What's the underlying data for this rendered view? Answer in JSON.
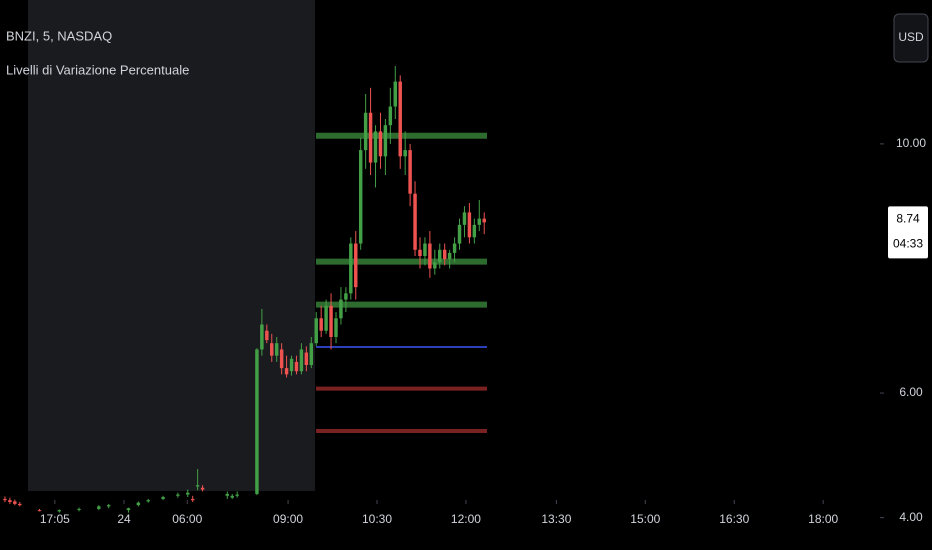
{
  "chart_data": {
    "type": "candlestick",
    "title": "BNZI, 5, NASDAQ",
    "subtitle": "Livelli di Variazione Percentuale",
    "currency": "USD",
    "last_price": 8.74,
    "countdown": "04:33",
    "up_color": "#43a047",
    "down_color": "#ef5350",
    "xlim": [
      0,
      178.1
    ],
    "xticks": [
      {
        "value": 11.1,
        "label": "17:05"
      },
      {
        "value": 25.1,
        "label": "24"
      },
      {
        "value": 37.9,
        "label": "06:00"
      },
      {
        "value": 58.3,
        "label": "09:00"
      },
      {
        "value": 76.3,
        "label": "10:30"
      },
      {
        "value": 94.3,
        "label": "12:00"
      },
      {
        "value": 112.6,
        "label": "13:30"
      },
      {
        "value": 130.6,
        "label": "15:00"
      },
      {
        "value": 148.6,
        "label": "16:30"
      },
      {
        "value": 166.6,
        "label": "18:00"
      }
    ],
    "ylim": [
      3.48,
      12.31
    ],
    "yticks": [
      {
        "value": 4,
        "label": "4.00"
      },
      {
        "value": 6,
        "label": "6.00"
      },
      {
        "value": 10,
        "label": "10.00"
      }
    ],
    "levels": [
      {
        "value": 10.13,
        "color": "#2e6b2e"
      },
      {
        "value": 8.11,
        "color": "#2e6b2e"
      },
      {
        "value": 7.42,
        "color": "#2e6b2e"
      },
      {
        "value": 6.74,
        "color": "#2a3fb8"
      },
      {
        "value": 6.07,
        "color": "#7a2222"
      },
      {
        "value": 5.39,
        "color": "#7a2222"
      }
    ],
    "x": [
      1,
      2,
      3,
      4,
      8,
      12,
      16,
      20,
      22,
      26,
      28,
      30,
      33,
      36,
      38,
      39,
      40,
      41,
      46,
      47,
      48,
      52,
      53,
      54,
      55,
      56,
      57,
      58,
      59,
      60,
      61,
      62,
      63,
      64,
      65,
      66,
      67,
      68,
      69,
      70,
      71,
      72,
      73,
      74,
      75,
      76,
      77,
      78,
      79,
      80,
      81,
      82,
      83,
      84,
      85,
      86,
      87,
      88,
      89,
      90,
      91,
      92,
      93,
      94,
      95,
      96,
      97,
      98
    ],
    "open": [
      4.3,
      4.28,
      4.26,
      4.22,
      4.12,
      4.1,
      4.13,
      4.14,
      4.18,
      4.12,
      4.2,
      4.26,
      4.3,
      4.35,
      4.37,
      4.3,
      4.5,
      4.48,
      4.35,
      4.32,
      4.35,
      4.38,
      6.7,
      7.0,
      6.8,
      6.6,
      6.7,
      6.4,
      6.35,
      6.5,
      6.35,
      6.65,
      6.45,
      6.8,
      7.2,
      7.0,
      7.4,
      6.9,
      7.2,
      7.5,
      7.6,
      8.4,
      8.4,
      9.9,
      10.5,
      9.7,
      10.2,
      9.8,
      10.3,
      10.6,
      11.0,
      9.8,
      9.9,
      9.2,
      8.3,
      8.2,
      8.4,
      8.0,
      8.1,
      8.3,
      8.15,
      8.25,
      8.4,
      8.7,
      8.9,
      8.5,
      8.7,
      8.8
    ],
    "high": [
      4.34,
      4.32,
      4.29,
      4.25,
      4.14,
      4.13,
      4.16,
      4.2,
      4.22,
      4.16,
      4.26,
      4.3,
      4.35,
      4.4,
      4.45,
      4.35,
      4.78,
      4.52,
      4.42,
      4.38,
      4.42,
      6.72,
      7.35,
      7.1,
      6.95,
      6.9,
      6.8,
      6.6,
      6.6,
      6.6,
      6.8,
      6.75,
      6.9,
      7.3,
      7.4,
      7.5,
      7.6,
      7.3,
      7.7,
      7.7,
      8.5,
      8.6,
      10.1,
      10.8,
      10.9,
      10.3,
      10.5,
      10.4,
      10.9,
      11.25,
      11.1,
      10.2,
      10.0,
      9.4,
      8.5,
      8.5,
      8.6,
      8.3,
      8.4,
      8.4,
      8.3,
      8.5,
      8.8,
      9.0,
      9.05,
      8.8,
      9.1,
      8.9
    ],
    "low": [
      4.25,
      4.22,
      4.2,
      4.18,
      4.1,
      4.08,
      4.1,
      4.12,
      4.15,
      4.08,
      4.18,
      4.24,
      4.28,
      4.32,
      4.33,
      4.25,
      4.44,
      4.42,
      4.3,
      4.3,
      4.32,
      4.36,
      6.6,
      6.8,
      6.5,
      6.5,
      6.3,
      6.25,
      6.28,
      6.3,
      6.3,
      6.35,
      6.4,
      6.75,
      6.9,
      6.95,
      6.7,
      6.8,
      7.1,
      7.3,
      7.5,
      7.5,
      8.3,
      9.6,
      9.5,
      9.3,
      9.6,
      9.5,
      10.0,
      10.4,
      9.6,
      9.5,
      9.0,
      8.2,
      8.0,
      8.05,
      7.85,
      7.9,
      8.0,
      8.05,
      8.0,
      8.1,
      8.3,
      8.5,
      8.4,
      8.4,
      8.6,
      8.55
    ],
    "close": [
      4.28,
      4.25,
      4.22,
      4.2,
      4.11,
      4.12,
      4.14,
      4.18,
      4.2,
      4.15,
      4.24,
      4.28,
      4.33,
      4.37,
      4.4,
      4.28,
      4.52,
      4.45,
      4.38,
      4.35,
      4.37,
      6.7,
      7.1,
      6.85,
      6.6,
      6.8,
      6.4,
      6.3,
      6.55,
      6.35,
      6.7,
      6.45,
      6.8,
      7.2,
      7.0,
      7.4,
      6.9,
      7.2,
      7.5,
      7.6,
      8.4,
      7.7,
      9.9,
      10.5,
      9.7,
      10.2,
      9.8,
      10.3,
      10.6,
      11.0,
      9.8,
      9.9,
      9.2,
      8.3,
      8.2,
      8.4,
      8.0,
      8.1,
      8.3,
      8.15,
      8.25,
      8.4,
      8.7,
      8.9,
      8.5,
      8.7,
      8.8,
      8.74
    ]
  }
}
